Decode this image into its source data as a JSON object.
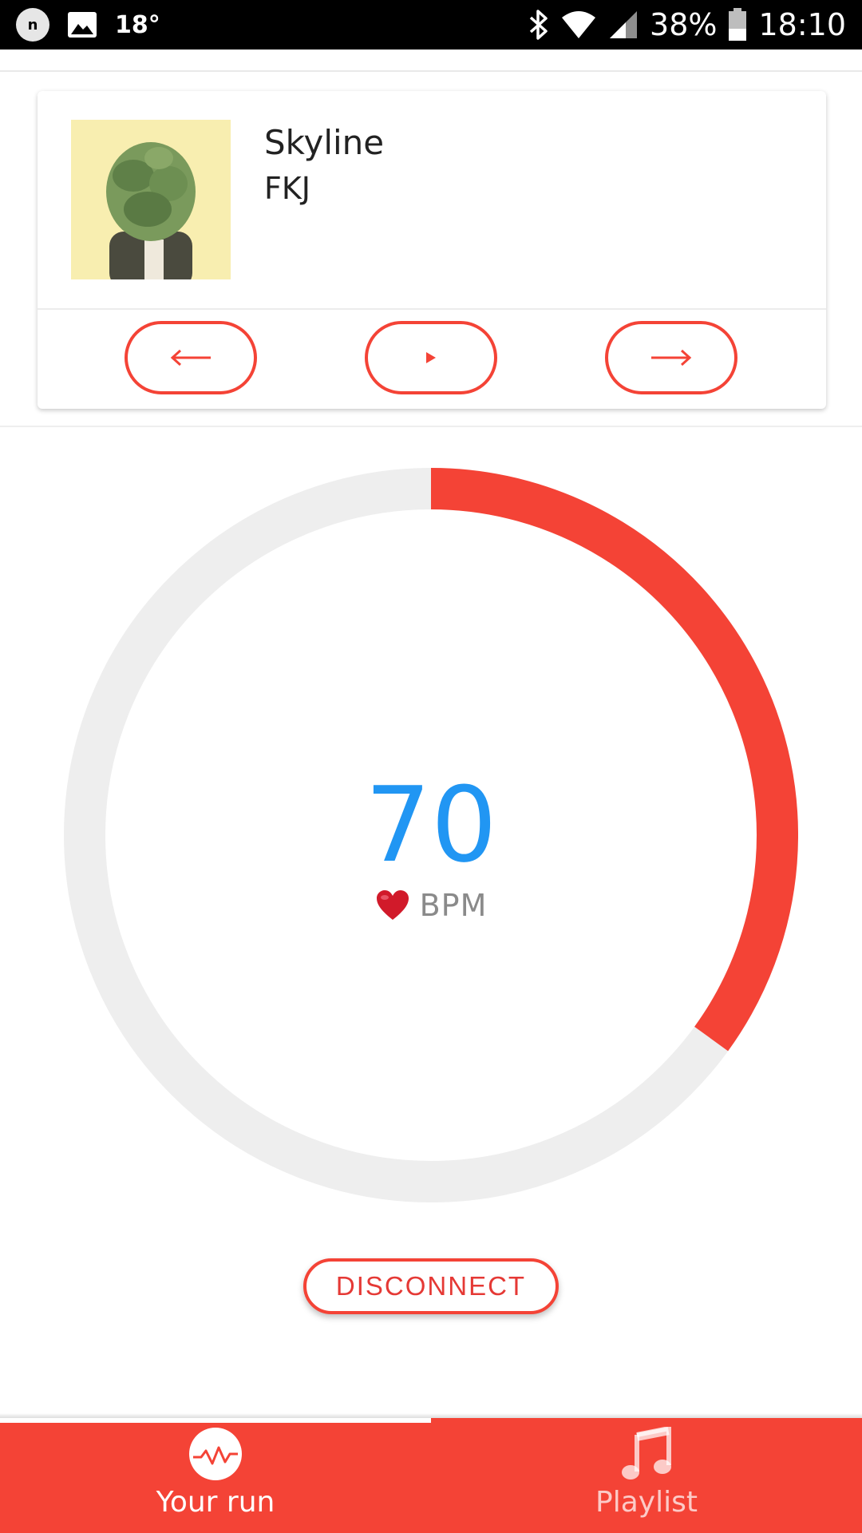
{
  "status_bar": {
    "notification_letter": "n",
    "temperature": "18°",
    "battery": "38%",
    "time": "18:10",
    "icons": [
      "notification-icon",
      "image-icon",
      "bluetooth-icon",
      "wifi-icon",
      "signal-icon",
      "battery-icon"
    ]
  },
  "song": {
    "title": "Skyline",
    "artist": "FKJ",
    "controls": {
      "prev_label": "←",
      "play_label": "▸",
      "next_label": "→"
    }
  },
  "heart_rate": {
    "value": "70",
    "unit": "BPM",
    "progress_fraction": 0.35,
    "colors": {
      "progress": "#f44336",
      "track": "#eeeeee",
      "value": "#2196f3"
    }
  },
  "actions": {
    "disconnect_label": "DISCONNECT"
  },
  "bottom_nav": {
    "items": [
      {
        "label": "Your run",
        "icon": "heartbeat-icon",
        "active": true
      },
      {
        "label": "Playlist",
        "icon": "music-note-icon",
        "active": false
      }
    ]
  },
  "colors": {
    "accent": "#f44336",
    "status_bar": "#000000"
  }
}
